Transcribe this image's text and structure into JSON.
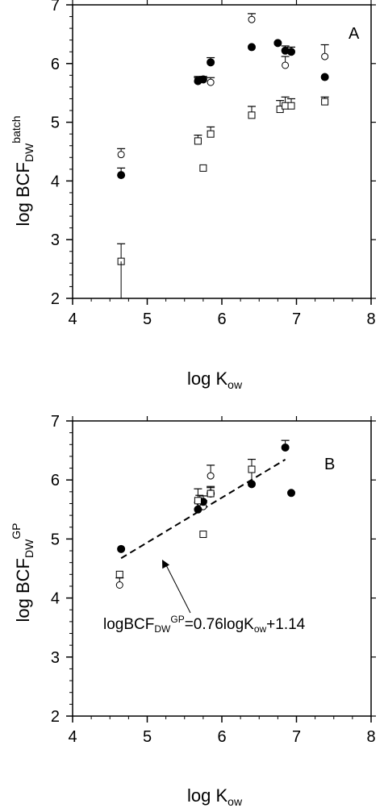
{
  "chart_data": [
    {
      "type": "scatter",
      "panel_label": "A",
      "xlabel": {
        "main": "log K",
        "sub": "ow"
      },
      "ylabel": {
        "main": "log BCF",
        "sub": "DW",
        "sup": "batch"
      },
      "xlim": [
        4,
        8
      ],
      "ylim": [
        2,
        7
      ],
      "xticks": [
        "4",
        "5",
        "6",
        "7",
        "8"
      ],
      "yticks": [
        "2",
        "3",
        "4",
        "5",
        "6",
        "7"
      ],
      "series": [
        {
          "marker": "open-circle",
          "points": [
            {
              "x": 4.65,
              "y": 4.45,
              "err": 0.1
            },
            {
              "x": 5.68,
              "y": 5.72,
              "err": 0.06
            },
            {
              "x": 5.85,
              "y": 5.68,
              "err": 0.08
            },
            {
              "x": 6.4,
              "y": 6.75,
              "err": 0.1
            },
            {
              "x": 6.85,
              "y": 5.97,
              "err": 0.15
            },
            {
              "x": 7.38,
              "y": 6.12,
              "err": 0.2
            }
          ]
        },
        {
          "marker": "filled-circle",
          "points": [
            {
              "x": 4.65,
              "y": 4.1,
              "err": 0.12
            },
            {
              "x": 5.68,
              "y": 5.7,
              "err": 0.06
            },
            {
              "x": 5.75,
              "y": 5.73,
              "err": 0.05
            },
            {
              "x": 5.85,
              "y": 6.02,
              "err": 0.08
            },
            {
              "x": 6.4,
              "y": 6.28,
              "err": 0
            },
            {
              "x": 6.75,
              "y": 6.35,
              "err": 0
            },
            {
              "x": 6.85,
              "y": 6.22,
              "err": 0.08
            },
            {
              "x": 6.93,
              "y": 6.2,
              "err": 0.08
            },
            {
              "x": 7.38,
              "y": 5.77,
              "err": 0
            }
          ]
        },
        {
          "marker": "open-square",
          "points": [
            {
              "x": 4.65,
              "y": 2.63,
              "err": 0.3
            },
            {
              "x": 5.68,
              "y": 4.68,
              "err": 0.1
            },
            {
              "x": 5.75,
              "y": 4.22,
              "err": 0
            },
            {
              "x": 5.85,
              "y": 4.8,
              "err": 0.12
            },
            {
              "x": 6.4,
              "y": 5.12,
              "err": 0.15
            },
            {
              "x": 6.78,
              "y": 5.22,
              "err": 0.15
            },
            {
              "x": 6.85,
              "y": 5.28,
              "err": 0.15
            },
            {
              "x": 6.93,
              "y": 5.28,
              "err": 0.12
            },
            {
              "x": 7.38,
              "y": 5.35,
              "err": 0.08
            }
          ]
        }
      ]
    },
    {
      "type": "scatter",
      "panel_label": "B",
      "xlabel": {
        "main": "log K",
        "sub": "ow"
      },
      "ylabel": {
        "main": "log BCF",
        "sub": "DW",
        "sup": "GP"
      },
      "xlim": [
        4,
        8
      ],
      "ylim": [
        2,
        7
      ],
      "xticks": [
        "4",
        "5",
        "6",
        "7",
        "8"
      ],
      "yticks": [
        "2",
        "3",
        "4",
        "5",
        "6",
        "7"
      ],
      "annotation": {
        "a": "logBCF",
        "b": "DW",
        "c": "GP",
        "d": "=0.76logK",
        "e": "ow",
        "f": "+1.14"
      },
      "fit_line": {
        "slope": 0.76,
        "intercept": 1.14,
        "x_range": [
          4.65,
          6.85
        ]
      },
      "arrow_target": {
        "x": 5.2,
        "y": 4.65
      },
      "series": [
        {
          "marker": "open-circle",
          "points": [
            {
              "x": 4.63,
              "y": 4.22,
              "err": 0.12
            },
            {
              "x": 5.7,
              "y": 5.62,
              "err": 0.12
            },
            {
              "x": 5.75,
              "y": 5.55,
              "err": 0.1
            },
            {
              "x": 5.85,
              "y": 6.07,
              "err": 0.18
            }
          ]
        },
        {
          "marker": "filled-circle",
          "points": [
            {
              "x": 4.65,
              "y": 4.83,
              "err": 0
            },
            {
              "x": 5.68,
              "y": 5.5,
              "err": 0.12
            },
            {
              "x": 5.75,
              "y": 5.63,
              "err": 0.1
            },
            {
              "x": 5.85,
              "y": 5.77,
              "err": 0.1
            },
            {
              "x": 6.4,
              "y": 5.93,
              "err": 0.42
            },
            {
              "x": 6.85,
              "y": 6.55,
              "err": 0.12
            },
            {
              "x": 6.93,
              "y": 5.78,
              "err": 0
            }
          ]
        },
        {
          "marker": "open-square",
          "points": [
            {
              "x": 4.63,
              "y": 4.4,
              "err": 0
            },
            {
              "x": 5.68,
              "y": 5.65,
              "err": 0.2
            },
            {
              "x": 5.75,
              "y": 5.08,
              "err": 0
            },
            {
              "x": 5.85,
              "y": 5.77,
              "err": 0.12
            },
            {
              "x": 6.4,
              "y": 6.18,
              "err": 0
            }
          ]
        }
      ]
    }
  ]
}
